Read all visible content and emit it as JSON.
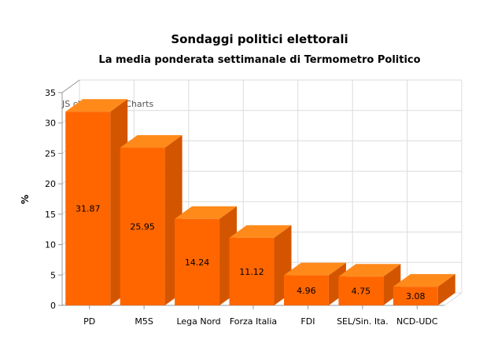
{
  "chart_data": {
    "type": "bar",
    "title": "Sondaggi politici elettorali",
    "subtitle": "La media ponderata settimanale di Termometro Politico",
    "watermark": "JS chart by amCharts",
    "ylabel": "%",
    "xlabel": "",
    "categories": [
      "PD",
      "M5S",
      "Lega Nord",
      "Forza Italia",
      "FDI",
      "SEL/Sin. Ita.",
      "NCD-UDC"
    ],
    "values": [
      31.87,
      25.95,
      14.24,
      11.12,
      4.96,
      4.75,
      3.08
    ],
    "value_labels": [
      "31.87",
      "25.95",
      "14.24",
      "11.12",
      "4.96",
      "4.75",
      "3.08"
    ],
    "ylim": [
      0,
      35
    ],
    "yticks": [
      "0",
      "5",
      "10",
      "15",
      "20",
      "25",
      "30",
      "35"
    ],
    "grid": true,
    "legend": "none",
    "style": "3d",
    "colors": {
      "bar_front": "#ff6600",
      "bar_top": "#ff8a1a",
      "bar_side": "#d45500",
      "grid": "#dcdcdc",
      "axis": "#999999"
    }
  }
}
